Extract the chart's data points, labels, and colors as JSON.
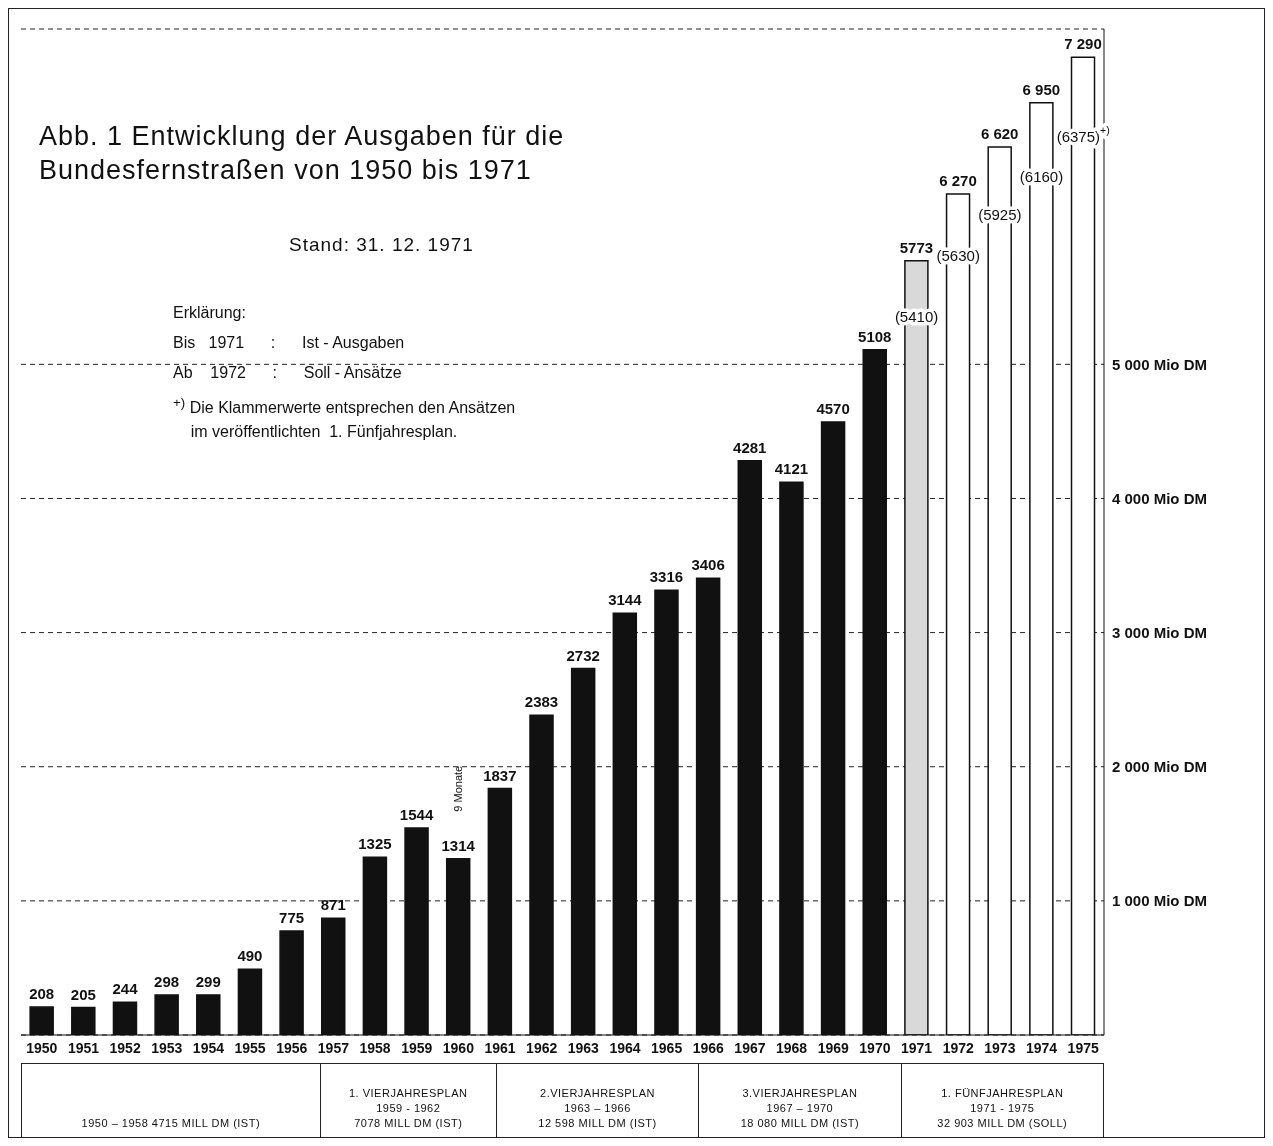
{
  "chart_data": {
    "type": "bar",
    "title": "Abb. 1    Entwicklung der Ausgaben für die\nBundesfernstraßen von 1950 bis 1971",
    "subtitle": "Stand: 31. 12. 1971",
    "categories": [
      "1950",
      "1951",
      "1952",
      "1953",
      "1954",
      "1955",
      "1956",
      "1957",
      "1958",
      "1959",
      "1960",
      "1961",
      "1962",
      "1963",
      "1964",
      "1965",
      "1966",
      "1967",
      "1968",
      "1969",
      "1970",
      "1971",
      "1972",
      "1973",
      "1974",
      "1975"
    ],
    "values": [
      208,
      205,
      244,
      298,
      299,
      490,
      775,
      871,
      1325,
      1544,
      1314,
      1837,
      2383,
      2732,
      3144,
      3316,
      3406,
      4281,
      4121,
      4570,
      5108,
      5773,
      6270,
      6620,
      6950,
      7290
    ],
    "value_labels": [
      "208",
      "205",
      "244",
      "298",
      "299",
      "490",
      "775",
      "871",
      "1325",
      "1544",
      "1314",
      "1837",
      "2383",
      "2732",
      "3144",
      "3316",
      "3406",
      "4281",
      "4121",
      "4570",
      "5108",
      "5773",
      "6 270",
      "6 620",
      "6 950",
      "7 290"
    ],
    "colors": [
      "#111111",
      "#111111",
      "#111111",
      "#111111",
      "#111111",
      "#111111",
      "#111111",
      "#111111",
      "#111111",
      "#111111",
      "#111111",
      "#111111",
      "#111111",
      "#111111",
      "#111111",
      "#111111",
      "#111111",
      "#111111",
      "#111111",
      "#111111",
      "#111111",
      "#d9d9d9",
      "#ffffff",
      "#ffffff",
      "#ffffff",
      "#ffffff"
    ],
    "ylim": [
      0,
      7500
    ],
    "yticks": [
      {
        "value": 1000,
        "label": "1 000 Mio DM"
      },
      {
        "value": 2000,
        "label": "2 000 Mio DM"
      },
      {
        "value": 3000,
        "label": "3 000 Mio DM"
      },
      {
        "value": 4000,
        "label": "4 000 Mio DM"
      },
      {
        "value": 5000,
        "label": "5 000 Mio DM"
      }
    ],
    "grid": "y",
    "annotations": [
      "Erklärung:",
      "Bis   1971      :      Ist - Ausgaben",
      "Ab    1972      :      Soll - Ansätze",
      "$^{+)}$ Die Klammerwerte entsprechen den Ansätzen\n    im veröffentlichten  1. Fünfjahresplan.",
      "1950 – 1958   4715  MILL DM  (IST)",
      "1. VIERJAHRESPLAN\n1959 - 1962\n7078  MILL DM  (IST)",
      "2.VIERJAHRESPLAN\n1963 – 1966\n12 598  MILL DM   (IST)",
      "3.VIERJAHRESPLAN\n1967 – 1970\n18 080  MILL DM   (IST)",
      "1. FÜNFJAHRESPLAN\n1971 - 1975\n32 903  MILL  DM (SOLL)",
      "9 Monate",
      "(5410)",
      "(5630)",
      "(5925)",
      "(6160)",
      "(6375)$^{+)}$"
    ]
  }
}
